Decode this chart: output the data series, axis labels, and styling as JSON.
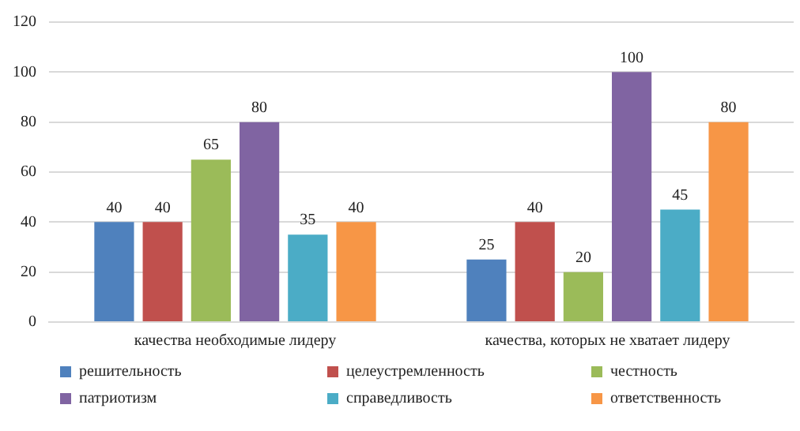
{
  "chart_data": {
    "type": "bar",
    "categories": [
      "качества необходимые лидеру",
      "качества, которых не хватает лидеру"
    ],
    "series": [
      {
        "name": "решительность",
        "color": "#4f81bd",
        "values": [
          40,
          25
        ]
      },
      {
        "name": "целеустремленность",
        "color": "#c0504d",
        "values": [
          40,
          40
        ]
      },
      {
        "name": "честность",
        "color": "#9bbb59",
        "values": [
          65,
          20
        ]
      },
      {
        "name": "патриотизм",
        "color": "#8064a2",
        "values": [
          80,
          100
        ]
      },
      {
        "name": "справедливость",
        "color": "#4bacc6",
        "values": [
          35,
          45
        ]
      },
      {
        "name": "ответственность",
        "color": "#f79646",
        "values": [
          40,
          80
        ]
      }
    ],
    "ylim": [
      0,
      120
    ],
    "yticks": [
      0,
      20,
      40,
      60,
      80,
      100,
      120
    ],
    "grid": "y",
    "legend": "bottom",
    "data_labels": true
  }
}
